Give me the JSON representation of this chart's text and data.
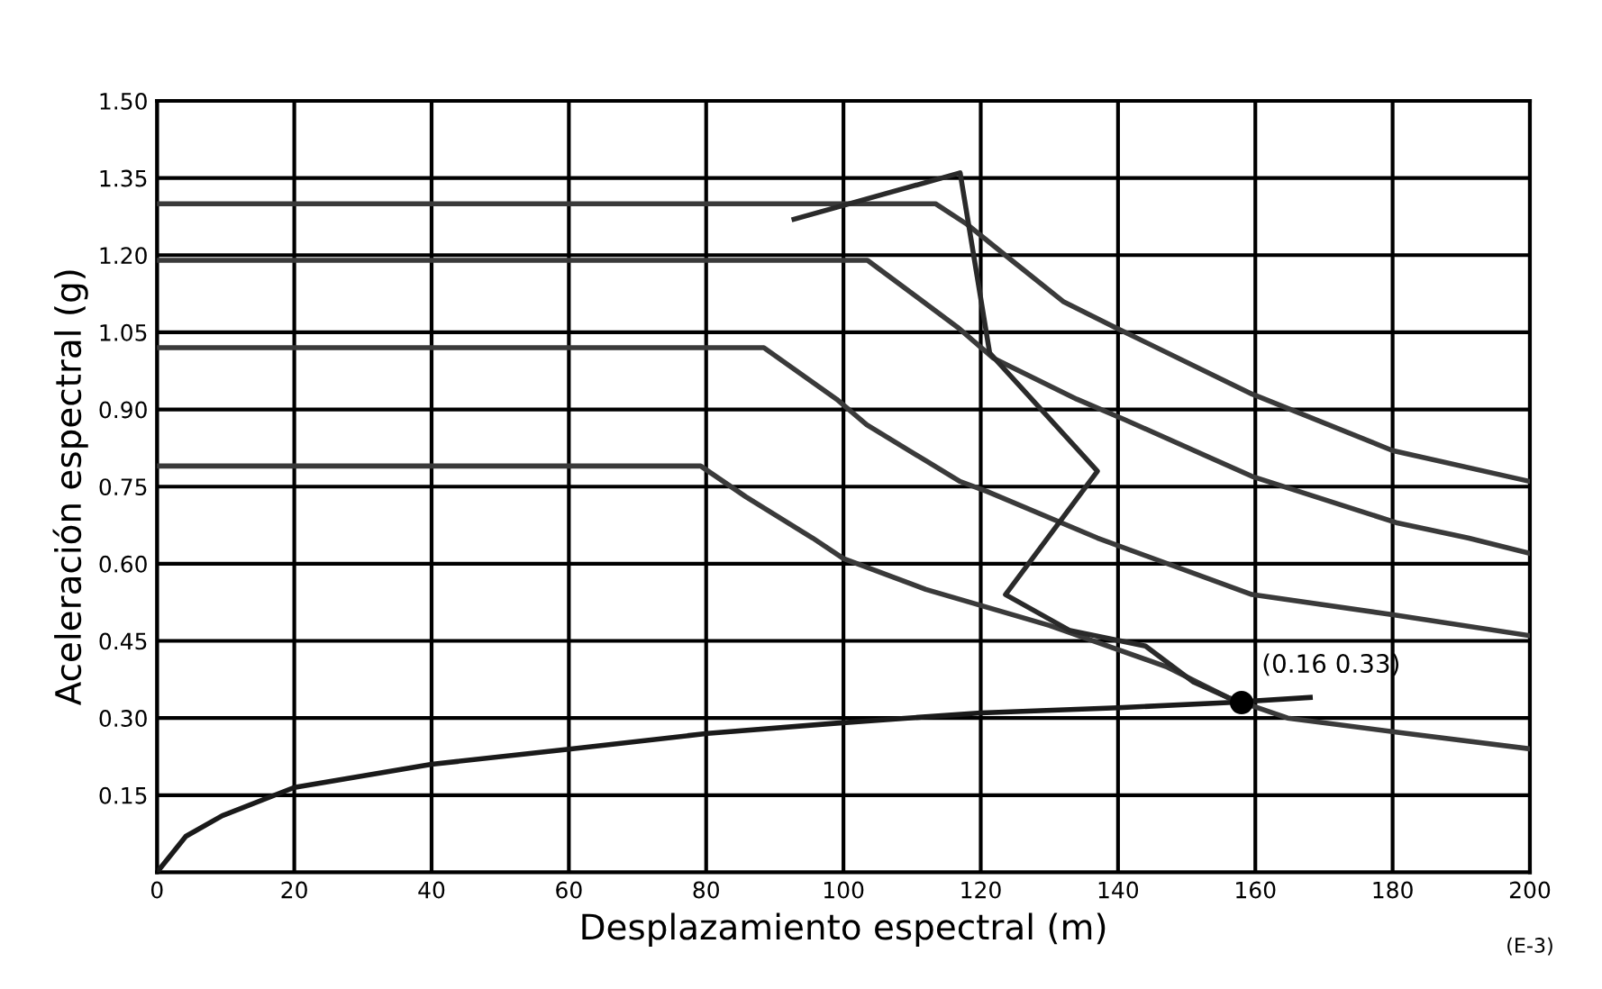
{
  "chart_data": {
    "type": "line",
    "xlabel": "Desplazamiento espectral (m)",
    "ylabel": "Aceleración espectral (g)",
    "xlim": [
      0,
      200
    ],
    "ylim": [
      0,
      1.5
    ],
    "xticks": [
      0,
      20,
      40,
      60,
      80,
      100,
      120,
      140,
      160,
      180,
      200
    ],
    "yticks": [
      {
        "value": 0.15,
        "label": "0.15"
      },
      {
        "value": 0.3,
        "label": "0.30"
      },
      {
        "value": 0.45,
        "label": "0.45"
      },
      {
        "value": 0.6,
        "label": "0.60"
      },
      {
        "value": 0.75,
        "label": "0.75"
      },
      {
        "value": 0.9,
        "label": "0.90"
      },
      {
        "value": 1.05,
        "label": "1.05"
      },
      {
        "value": 1.2,
        "label": "1.20"
      },
      {
        "value": 1.35,
        "label": "1.35"
      },
      {
        "value": 1.5,
        "label": "1.50"
      }
    ],
    "grid": true,
    "legend": false,
    "marker": "none",
    "line_style": "solid",
    "series": [
      {
        "color": "#3a3a3a",
        "x": [
          0,
          113.4,
          118,
          124.5,
          132,
          139.5,
          159.5,
          180,
          200
        ],
        "values": [
          1.3,
          1.3,
          1.26,
          1.19,
          1.11,
          1.06,
          0.93,
          0.82,
          0.76
        ]
      },
      {
        "color": "#3a3a3a",
        "x": [
          0,
          103.5,
          116.6,
          121.8,
          134,
          141,
          159.5,
          180.5,
          191,
          200
        ],
        "values": [
          1.19,
          1.19,
          1.06,
          1.0,
          0.92,
          0.88,
          0.77,
          0.68,
          0.65,
          0.62
        ]
      },
      {
        "color": "#3a3a3a",
        "x": [
          0,
          88.4,
          99,
          103.4,
          117,
          121,
          137,
          159.5,
          180.5,
          200
        ],
        "values": [
          1.02,
          1.02,
          0.92,
          0.87,
          0.76,
          0.74,
          0.65,
          0.54,
          0.5,
          0.46
        ]
      },
      {
        "color": "#3a3a3a",
        "x": [
          0,
          79.2,
          85.8,
          95.5,
          100,
          112,
          130,
          147,
          156,
          164.7,
          182,
          200
        ],
        "values": [
          0.79,
          0.79,
          0.73,
          0.65,
          0.61,
          0.55,
          0.48,
          0.4,
          0.34,
          0.3,
          0.27,
          0.24
        ]
      },
      {
        "color": "#1a1a1a",
        "x": [
          0,
          4.2,
          9.5,
          20,
          40,
          60.3,
          80.2,
          99,
          120,
          140,
          156,
          168
        ],
        "values": [
          0,
          0.07,
          0.11,
          0.165,
          0.21,
          0.24,
          0.27,
          0.29,
          0.31,
          0.32,
          0.33,
          0.34
        ]
      },
      {
        "color": "#2a2a2a",
        "x": [
          92.8,
          117,
          121.3,
          137,
          123.6,
          133,
          144,
          151,
          156
        ],
        "values": [
          1.27,
          1.36,
          1.01,
          0.78,
          0.54,
          0.47,
          0.44,
          0.37,
          0.34
        ]
      },
      {
        "type": "scatter",
        "marker": "circle",
        "color": "#000000",
        "x": [
          158
        ],
        "values": [
          0.33
        ]
      }
    ],
    "annotations": [
      {
        "text": "(0.16 0.33)",
        "x": 158,
        "y": 0.33
      },
      "(E-3)"
    ]
  }
}
